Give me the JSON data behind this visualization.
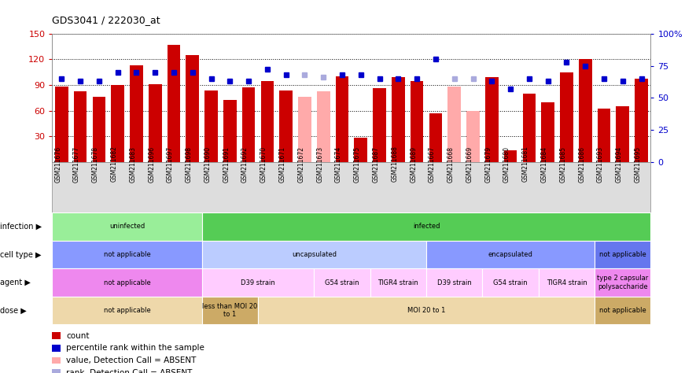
{
  "title": "GDS3041 / 222030_at",
  "samples": [
    "GSM211676",
    "GSM211677",
    "GSM211678",
    "GSM211682",
    "GSM211683",
    "GSM211696",
    "GSM211697",
    "GSM211698",
    "GSM211690",
    "GSM211691",
    "GSM211692",
    "GSM211670",
    "GSM211671",
    "GSM211672",
    "GSM211673",
    "GSM211674",
    "GSM211675",
    "GSM211687",
    "GSM211688",
    "GSM211689",
    "GSM211667",
    "GSM211668",
    "GSM211669",
    "GSM211679",
    "GSM211680",
    "GSM211681",
    "GSM211684",
    "GSM211685",
    "GSM211686",
    "GSM211693",
    "GSM211694",
    "GSM211695"
  ],
  "counts": [
    88,
    83,
    76,
    90,
    113,
    91,
    137,
    125,
    84,
    73,
    87,
    95,
    84,
    76,
    83,
    100,
    29,
    86,
    99,
    95,
    57,
    88,
    60,
    99,
    14,
    80,
    70,
    105,
    120,
    63,
    65,
    97
  ],
  "absent_count": [
    false,
    false,
    false,
    false,
    false,
    false,
    false,
    false,
    false,
    false,
    false,
    false,
    false,
    true,
    true,
    false,
    false,
    false,
    false,
    false,
    false,
    true,
    true,
    false,
    false,
    false,
    false,
    false,
    false,
    false,
    false,
    false
  ],
  "percentile": [
    65,
    63,
    63,
    70,
    70,
    70,
    70,
    70,
    65,
    63,
    63,
    72,
    68,
    68,
    66,
    68,
    68,
    65,
    65,
    65,
    80,
    65,
    65,
    63,
    57,
    65,
    63,
    78,
    75,
    65,
    63,
    65
  ],
  "absent_rank": [
    false,
    false,
    false,
    false,
    false,
    false,
    false,
    false,
    false,
    false,
    false,
    false,
    false,
    true,
    true,
    false,
    false,
    false,
    false,
    false,
    false,
    true,
    true,
    false,
    false,
    false,
    false,
    false,
    false,
    false,
    false,
    false
  ],
  "ylim_left": [
    0,
    150
  ],
  "ylim_right": [
    0,
    100
  ],
  "yticks_left": [
    30,
    60,
    90,
    120,
    150
  ],
  "yticks_right": [
    0,
    25,
    50,
    75,
    100
  ],
  "bar_color": "#CC0000",
  "bar_absent_color": "#FFAAAA",
  "dot_color": "#0000CC",
  "dot_absent_color": "#AAAADD",
  "annotation_rows": [
    {
      "label": "infection",
      "segments": [
        {
          "text": "uninfected",
          "start": 0,
          "end": 7,
          "color": "#99EE99"
        },
        {
          "text": "infected",
          "start": 8,
          "end": 31,
          "color": "#55CC55"
        }
      ]
    },
    {
      "label": "cell type",
      "segments": [
        {
          "text": "not applicable",
          "start": 0,
          "end": 7,
          "color": "#8899FF"
        },
        {
          "text": "uncapsulated",
          "start": 8,
          "end": 19,
          "color": "#BBCCFF"
        },
        {
          "text": "encapsulated",
          "start": 20,
          "end": 28,
          "color": "#8899FF"
        },
        {
          "text": "not applicable",
          "start": 29,
          "end": 31,
          "color": "#6677EE"
        }
      ]
    },
    {
      "label": "agent",
      "segments": [
        {
          "text": "not applicable",
          "start": 0,
          "end": 7,
          "color": "#EE88EE"
        },
        {
          "text": "D39 strain",
          "start": 8,
          "end": 13,
          "color": "#FFCCFF"
        },
        {
          "text": "G54 strain",
          "start": 14,
          "end": 16,
          "color": "#FFCCFF"
        },
        {
          "text": "TIGR4 strain",
          "start": 17,
          "end": 19,
          "color": "#FFCCFF"
        },
        {
          "text": "D39 strain",
          "start": 20,
          "end": 22,
          "color": "#FFCCFF"
        },
        {
          "text": "G54 strain",
          "start": 23,
          "end": 25,
          "color": "#FFCCFF"
        },
        {
          "text": "TIGR4 strain",
          "start": 26,
          "end": 28,
          "color": "#FFCCFF"
        },
        {
          "text": "type 2 capsular\npolysaccharide",
          "start": 29,
          "end": 31,
          "color": "#EE88EE"
        }
      ]
    },
    {
      "label": "dose",
      "segments": [
        {
          "text": "not applicable",
          "start": 0,
          "end": 7,
          "color": "#EED8AA"
        },
        {
          "text": "less than MOI 20\nto 1",
          "start": 8,
          "end": 10,
          "color": "#CCAA66"
        },
        {
          "text": "MOI 20 to 1",
          "start": 11,
          "end": 28,
          "color": "#EED8AA"
        },
        {
          "text": "not applicable",
          "start": 29,
          "end": 31,
          "color": "#CCAA66"
        }
      ]
    }
  ],
  "legend_items": [
    {
      "label": "count",
      "color": "#CC0000"
    },
    {
      "label": "percentile rank within the sample",
      "color": "#0000CC"
    },
    {
      "label": "value, Detection Call = ABSENT",
      "color": "#FFAAAA"
    },
    {
      "label": "rank, Detection Call = ABSENT",
      "color": "#AAAADD"
    }
  ],
  "xtick_bg": "#DDDDDD"
}
